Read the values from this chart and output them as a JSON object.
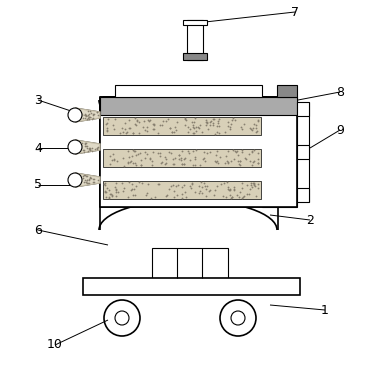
{
  "bg": "#ffffff",
  "lc": "#000000",
  "gray_dark": "#888888",
  "gray_med": "#aaaaaa",
  "gray_light": "#cccccc",
  "granule_bg": "#d8d0b8",
  "granule_dot": "#888070"
}
